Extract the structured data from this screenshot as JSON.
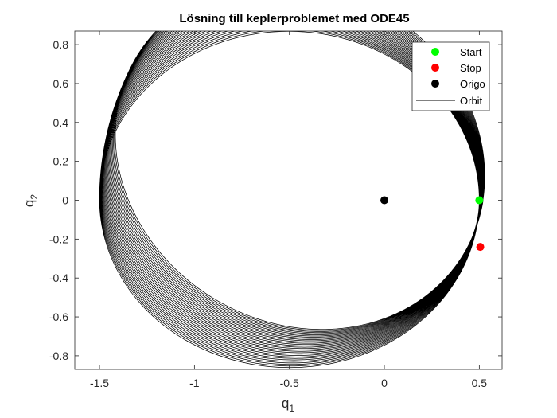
{
  "chart_data": {
    "type": "line",
    "title": "Lösning till keplerproblemet med ODE45",
    "xlabel": {
      "main": "q",
      "sub": "1"
    },
    "ylabel": {
      "main": "q",
      "sub": "2"
    },
    "xlim": [
      -1.63,
      0.62
    ],
    "ylim": [
      -0.87,
      0.87
    ],
    "xticks": [
      -1.5,
      -1,
      -0.5,
      0,
      0.5
    ],
    "xtick_labels": [
      "-1.5",
      "-1",
      "-0.5",
      "0",
      "0.5"
    ],
    "yticks": [
      -0.8,
      -0.6,
      -0.4,
      -0.2,
      0,
      0.2,
      0.4,
      0.6,
      0.8
    ],
    "ytick_labels": [
      "-0.8",
      "-0.6",
      "-0.4",
      "-0.2",
      "0",
      "0.2",
      "0.4",
      "0.6",
      "0.8"
    ],
    "legend_position": "top-right",
    "colors": {
      "start": "#00ff00",
      "stop": "#ff0000",
      "origin": "#000000",
      "orbit": "#000000"
    },
    "series": [
      {
        "name": "Start",
        "kind": "marker",
        "x": [
          0.5
        ],
        "y": [
          0
        ]
      },
      {
        "name": "Stop",
        "kind": "marker",
        "x": [
          0.505
        ],
        "y": [
          -0.24
        ]
      },
      {
        "name": "Origo",
        "kind": "marker",
        "x": [
          0
        ],
        "y": [
          0
        ]
      },
      {
        "name": "Orbit",
        "kind": "line",
        "eccentricity": 0.5,
        "perihelion": 0.5,
        "revolutions": 30,
        "precession_total_deg": -28
      }
    ]
  }
}
